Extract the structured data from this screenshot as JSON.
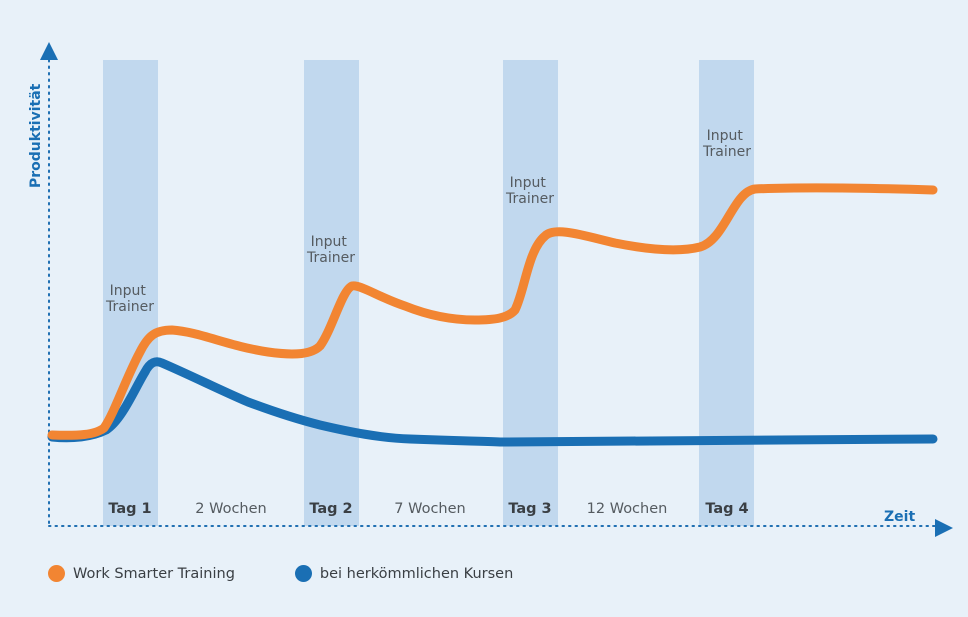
{
  "chart_data": {
    "type": "line",
    "ylabel": "Produktivität",
    "xlabel": "Zeit",
    "days": [
      {
        "label": "Tag 1",
        "annotation": [
          "Input",
          "Trainer"
        ]
      },
      {
        "label": "Tag 2",
        "annotation": [
          "Input",
          "Trainer"
        ]
      },
      {
        "label": "Tag 3",
        "annotation": [
          "Input",
          "Trainer"
        ]
      },
      {
        "label": "Tag 4",
        "annotation": [
          "Input",
          "Trainer"
        ]
      }
    ],
    "gaps": [
      "2 Wochen",
      "7 Wochen",
      "12 Wochen"
    ],
    "series": [
      {
        "name": "Work Smarter Training",
        "color": "#f28532"
      },
      {
        "name": "bei herkömmlichen Kursen",
        "color": "#1a6fb4"
      }
    ]
  }
}
